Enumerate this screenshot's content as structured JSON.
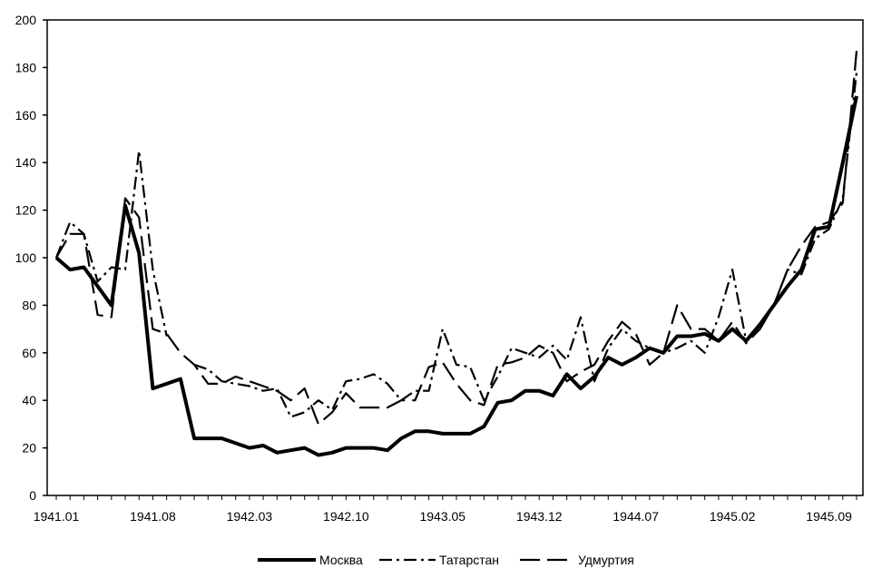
{
  "chart_data": {
    "type": "line",
    "title": "",
    "xlabel": "",
    "ylabel": "",
    "ylim": [
      0,
      200
    ],
    "yticks": [
      0,
      20,
      40,
      60,
      80,
      100,
      120,
      140,
      160,
      180,
      200
    ],
    "grid": false,
    "legend_position": "bottom",
    "x": [
      "1941.01",
      "1941.02",
      "1941.03",
      "1941.04",
      "1941.05",
      "1941.06",
      "1941.07",
      "1941.08",
      "1941.09",
      "1941.10",
      "1941.11",
      "1941.12",
      "1942.01",
      "1942.02",
      "1942.03",
      "1942.04",
      "1942.05",
      "1942.06",
      "1942.07",
      "1942.08",
      "1942.09",
      "1942.10",
      "1942.11",
      "1942.12",
      "1943.01",
      "1943.02",
      "1943.03",
      "1943.04",
      "1943.05",
      "1943.06",
      "1943.07",
      "1943.08",
      "1943.09",
      "1943.10",
      "1943.11",
      "1943.12",
      "1944.01",
      "1944.02",
      "1944.03",
      "1944.04",
      "1944.05",
      "1944.06",
      "1944.07",
      "1944.08",
      "1944.09",
      "1944.10",
      "1944.11",
      "1944.12",
      "1945.01",
      "1945.02",
      "1945.03",
      "1945.04",
      "1945.05",
      "1945.06",
      "1945.07",
      "1945.08",
      "1945.09",
      "1945.10",
      "1945.11"
    ],
    "x_tick_labels": [
      "1941.01",
      "1941.08",
      "1942.03",
      "1942.10",
      "1943.05",
      "1943.12",
      "1944.07",
      "1945.02",
      "1945.09"
    ],
    "series": [
      {
        "name": "Москва",
        "style": "solid-thick",
        "color": "#000000",
        "values": [
          100,
          95,
          96,
          88,
          80,
          122,
          102,
          45,
          47,
          49,
          24,
          24,
          24,
          22,
          20,
          21,
          18,
          19,
          20,
          17,
          18,
          20,
          20,
          20,
          19,
          24,
          27,
          27,
          26,
          26,
          26,
          29,
          39,
          40,
          44,
          44,
          42,
          51,
          45,
          50,
          58,
          55,
          58,
          62,
          60,
          67,
          67,
          68,
          65,
          70,
          65,
          72,
          80,
          88,
          95,
          112,
          113,
          140,
          168
        ],
        "ranges": [
          [
            0,
            58
          ]
        ]
      },
      {
        "name": "Татарстан",
        "style": "dashed-short",
        "color": "#000000",
        "values": [
          100,
          115,
          110,
          90,
          96,
          95,
          145,
          95,
          67,
          67,
          55,
          53,
          48,
          47,
          46,
          44,
          45,
          33,
          35,
          40,
          36,
          48,
          49,
          51,
          47,
          40,
          44,
          44,
          70,
          55,
          54,
          40,
          50,
          62,
          60,
          58,
          63,
          57,
          75,
          48,
          62,
          70,
          65,
          62,
          60,
          62,
          65,
          60,
          75,
          95,
          65,
          70,
          80,
          95,
          93,
          108,
          112,
          125,
          178
        ],
        "ranges": [
          [
            0,
            8
          ],
          [
            10,
            58
          ]
        ]
      },
      {
        "name": "Удмуртия",
        "style": "dashed-long",
        "color": "#000000",
        "values": [
          100,
          110,
          110,
          76,
          75,
          125,
          117,
          70,
          68,
          60,
          55,
          47,
          47,
          50,
          48,
          46,
          44,
          40,
          45,
          30,
          35,
          43,
          37,
          37,
          37,
          40,
          40,
          54,
          56,
          47,
          40,
          38,
          55,
          56,
          58,
          63,
          60,
          48,
          52,
          55,
          65,
          73,
          68,
          55,
          60,
          80,
          70,
          70,
          65,
          73,
          64,
          70,
          80,
          95,
          105,
          113,
          115,
          123,
          187
        ],
        "ranges": [
          [
            0,
            58
          ]
        ]
      }
    ]
  }
}
